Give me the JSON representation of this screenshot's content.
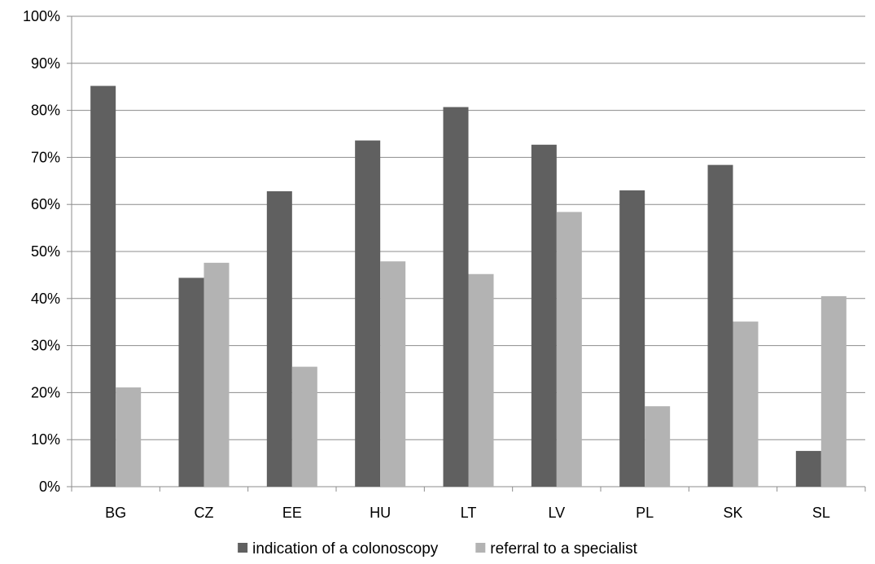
{
  "chart_data": {
    "type": "bar",
    "title": "",
    "xlabel": "",
    "ylabel": "",
    "categories": [
      "BG",
      "CZ",
      "EE",
      "HU",
      "LT",
      "LV",
      "PL",
      "SK",
      "SL"
    ],
    "series": [
      {
        "name": "indication of a colonoscopy",
        "color": "#606060",
        "values": [
          85.2,
          44.4,
          62.8,
          73.6,
          80.7,
          72.7,
          63.0,
          68.4,
          7.6
        ]
      },
      {
        "name": "referral to a specialist",
        "color": "#b3b3b3",
        "values": [
          21.1,
          47.6,
          25.5,
          47.9,
          45.2,
          58.4,
          17.1,
          35.1,
          40.5
        ]
      }
    ],
    "ylim": [
      0,
      100
    ],
    "yticks": [
      "0%",
      "10%",
      "20%",
      "30%",
      "40%",
      "50%",
      "60%",
      "70%",
      "80%",
      "90%",
      "100%"
    ],
    "grid": true,
    "legend_position": "bottom-center"
  }
}
